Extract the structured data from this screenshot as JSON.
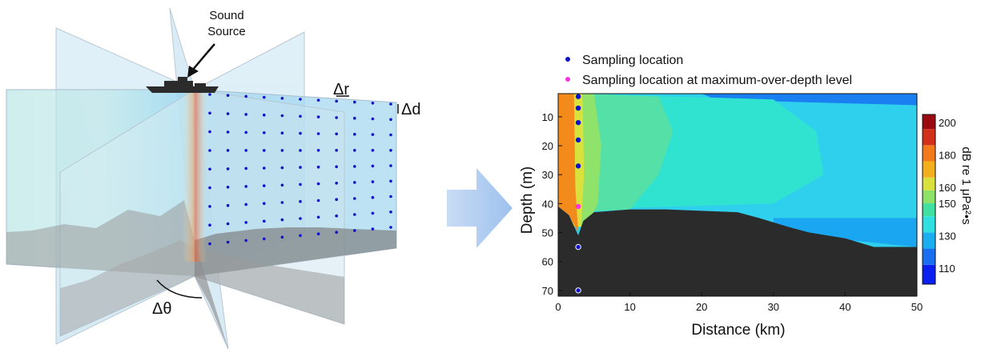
{
  "left_diagram": {
    "source_label_line1": "Sound",
    "source_label_line2": "Source",
    "delta_r_label": "Δr",
    "delta_d_label": "Δd",
    "delta_theta_label": "Δθ"
  },
  "legend": {
    "sampling_location": "Sampling location",
    "sampling_location_max": "Sampling location at maximum-over-depth level"
  },
  "colors": {
    "sampling_dot": "#1010cc",
    "sampling_max_dot": "#ff33dd",
    "arrow": "#a9c9f3",
    "seafloor": "#2b2b2b",
    "plane_fill": "#cde6f2"
  },
  "chart_data": {
    "type": "heatmap",
    "xlabel": "Distance (km)",
    "ylabel": "Depth (m)",
    "colorbar_label": "dB re 1 μPa²•s",
    "xlim": [
      0,
      50
    ],
    "ylim": [
      72,
      2
    ],
    "x_ticks": [
      "0",
      "10",
      "20",
      "30",
      "40",
      "50"
    ],
    "y_ticks": [
      "10",
      "20",
      "30",
      "40",
      "50",
      "60",
      "70"
    ],
    "colorbar_ticks": [
      "200",
      "180",
      "160",
      "150",
      "130",
      "110"
    ],
    "colorbar_range": [
      100,
      205
    ],
    "sampling_points": [
      {
        "x": 2.8,
        "depth": 3
      },
      {
        "x": 2.8,
        "depth": 7
      },
      {
        "x": 2.8,
        "depth": 12
      },
      {
        "x": 2.8,
        "depth": 18
      },
      {
        "x": 2.8,
        "depth": 27
      },
      {
        "x": 2.8,
        "depth": 55
      },
      {
        "x": 2.8,
        "depth": 70
      }
    ],
    "max_level_point": {
      "x": 2.8,
      "depth": 41
    },
    "seafloor_profile": [
      [
        0,
        41
      ],
      [
        1.5,
        44
      ],
      [
        2.8,
        51
      ],
      [
        3.5,
        46
      ],
      [
        5,
        43
      ],
      [
        10,
        42
      ],
      [
        15,
        42
      ],
      [
        20,
        42.5
      ],
      [
        25,
        43
      ],
      [
        28,
        45
      ],
      [
        32,
        48
      ],
      [
        35,
        50
      ],
      [
        40,
        52
      ],
      [
        44,
        55
      ],
      [
        47,
        55
      ],
      [
        50,
        55
      ]
    ]
  }
}
